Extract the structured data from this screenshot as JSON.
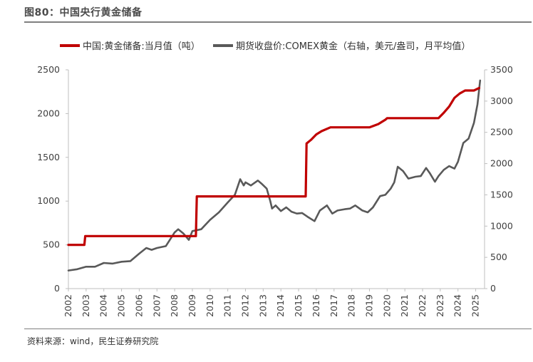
{
  "header": {
    "title": "图80：中国央行黄金储备"
  },
  "footer": {
    "source": "资料来源：wind，民生证券研究院"
  },
  "colors": {
    "reserves": "#c00000",
    "price": "#595959",
    "axis": "#bfbfbf"
  },
  "chart_data": {
    "type": "line",
    "title": "",
    "legend_placement": "top",
    "grid": false,
    "x_tick_labels": [
      "2002",
      "2003",
      "2004",
      "2005",
      "2006",
      "2007",
      "2008",
      "2009",
      "2010",
      "2011",
      "2012",
      "2013",
      "2014",
      "2015",
      "2016",
      "2017",
      "2018",
      "2019",
      "2020",
      "2021",
      "2022",
      "2023",
      "2024",
      "2025"
    ],
    "xlim": [
      2002,
      2025.5
    ],
    "y_left": {
      "lim": [
        0,
        2500
      ],
      "ticks": [
        0,
        500,
        1000,
        1500,
        2000,
        2500
      ]
    },
    "y_right": {
      "lim": [
        0,
        3500
      ],
      "ticks": [
        0,
        500,
        1000,
        1500,
        2000,
        2500,
        3000,
        3500
      ]
    },
    "series": [
      {
        "name": "中国:黄金储备:当月值（吨）",
        "axis": "left",
        "color": "#c00000",
        "x": [
          2002.0,
          2002.9,
          2002.95,
          2009.2,
          2009.25,
          2015.4,
          2015.45,
          2015.7,
          2016.0,
          2016.3,
          2016.8,
          2019.0,
          2019.5,
          2019.9,
          2020.0,
          2022.9,
          2023.2,
          2023.5,
          2023.8,
          2024.1,
          2024.4,
          2024.9,
          2025.2
        ],
        "y": [
          500,
          500,
          600,
          600,
          1054,
          1054,
          1658,
          1700,
          1762,
          1800,
          1843,
          1843,
          1880,
          1930,
          1948,
          1948,
          2010,
          2080,
          2180,
          2230,
          2264,
          2264,
          2292
        ]
      },
      {
        "name": "期货收盘价:COMEX黄金（右轴，美元/盎司，月平均值）",
        "axis": "right",
        "color": "#595959",
        "x": [
          2002.0,
          2002.5,
          2003.0,
          2003.5,
          2004.0,
          2004.5,
          2005.0,
          2005.5,
          2006.0,
          2006.4,
          2006.7,
          2007.0,
          2007.5,
          2008.0,
          2008.2,
          2008.5,
          2008.8,
          2009.0,
          2009.5,
          2010.0,
          2010.5,
          2011.0,
          2011.4,
          2011.7,
          2011.9,
          2012.0,
          2012.3,
          2012.7,
          2012.9,
          2013.2,
          2013.4,
          2013.5,
          2013.7,
          2014.0,
          2014.3,
          2014.6,
          2014.9,
          2015.2,
          2015.5,
          2015.9,
          2016.2,
          2016.6,
          2016.9,
          2017.2,
          2017.6,
          2017.9,
          2018.2,
          2018.6,
          2018.9,
          2019.2,
          2019.6,
          2019.9,
          2020.2,
          2020.4,
          2020.6,
          2020.9,
          2021.2,
          2021.6,
          2021.9,
          2022.2,
          2022.4,
          2022.7,
          2022.9,
          2023.2,
          2023.5,
          2023.8,
          2024.0,
          2024.3,
          2024.6,
          2024.9,
          2025.1,
          2025.25
        ],
        "y": [
          290,
          310,
          350,
          350,
          410,
          400,
          430,
          440,
          560,
          650,
          620,
          650,
          680,
          900,
          950,
          880,
          780,
          920,
          950,
          1100,
          1220,
          1380,
          1500,
          1750,
          1650,
          1700,
          1650,
          1730,
          1680,
          1600,
          1400,
          1280,
          1330,
          1240,
          1300,
          1230,
          1200,
          1210,
          1150,
          1080,
          1250,
          1330,
          1200,
          1250,
          1270,
          1280,
          1330,
          1250,
          1220,
          1300,
          1480,
          1500,
          1600,
          1700,
          1950,
          1880,
          1760,
          1790,
          1800,
          1930,
          1850,
          1710,
          1800,
          1900,
          1960,
          1920,
          2030,
          2330,
          2400,
          2650,
          2950,
          3330
        ]
      }
    ]
  }
}
